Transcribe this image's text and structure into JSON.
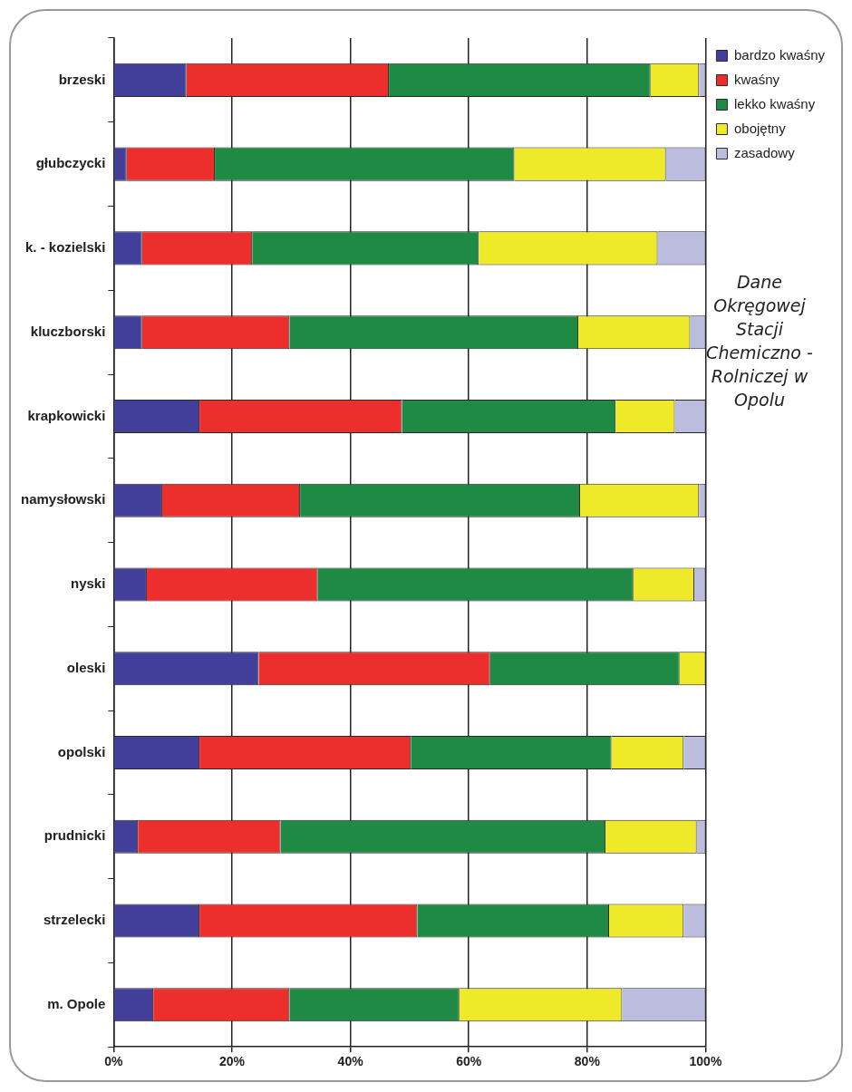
{
  "chart_data": {
    "type": "bar",
    "orientation": "horizontal",
    "stacked": true,
    "categories": [
      "brzeski",
      "głubczycki",
      "k. - kozielski",
      "kluczborski",
      "krapkowicki",
      "namysłowski",
      "nyski",
      "oleski",
      "opolski",
      "prudnicki",
      "strzelecki",
      "m. Opole"
    ],
    "series": [
      {
        "name": "bardzo kwaśny",
        "color": "#42409a",
        "values": [
          12.3,
          2.2,
          4.8,
          4.8,
          14.5,
          8.2,
          5.6,
          24.5,
          14.5,
          4.1,
          14.5,
          6.7
        ]
      },
      {
        "name": "kwaśny",
        "color": "#ec2f2d",
        "values": [
          34.2,
          14.9,
          18.6,
          24.9,
          34.2,
          23.3,
          28.9,
          39.1,
          35.7,
          24.1,
          36.8,
          23.0
        ]
      },
      {
        "name": "lekko kwaśny",
        "color": "#1e8a44",
        "values": [
          44.2,
          50.6,
          38.3,
          48.8,
          36.1,
          47.3,
          53.3,
          32.0,
          33.9,
          54.9,
          32.4,
          28.7
        ]
      },
      {
        "name": "obojętny",
        "color": "#eeea2a",
        "values": [
          8.2,
          25.6,
          30.2,
          18.9,
          10.0,
          20.1,
          10.3,
          4.4,
          12.2,
          15.4,
          12.6,
          27.5
        ]
      },
      {
        "name": "zasadowy",
        "color": "#bcbcde",
        "values": [
          1.1,
          6.7,
          8.1,
          2.6,
          5.2,
          1.1,
          1.9,
          0,
          3.7,
          1.5,
          3.7,
          14.1
        ]
      }
    ],
    "xlim": [
      0,
      100
    ],
    "xticks": [
      {
        "value": 0,
        "label": "0%"
      },
      {
        "value": 20,
        "label": "20%"
      },
      {
        "value": 40,
        "label": "40%"
      },
      {
        "value": 60,
        "label": "60%"
      },
      {
        "value": 80,
        "label": "80%"
      },
      {
        "value": 100,
        "label": "100%"
      }
    ],
    "grid": "x",
    "legend": "top right",
    "annotations": [
      "Dane Okręgowej Stacji Chemiczno - Rolniczej w Opolu"
    ]
  }
}
